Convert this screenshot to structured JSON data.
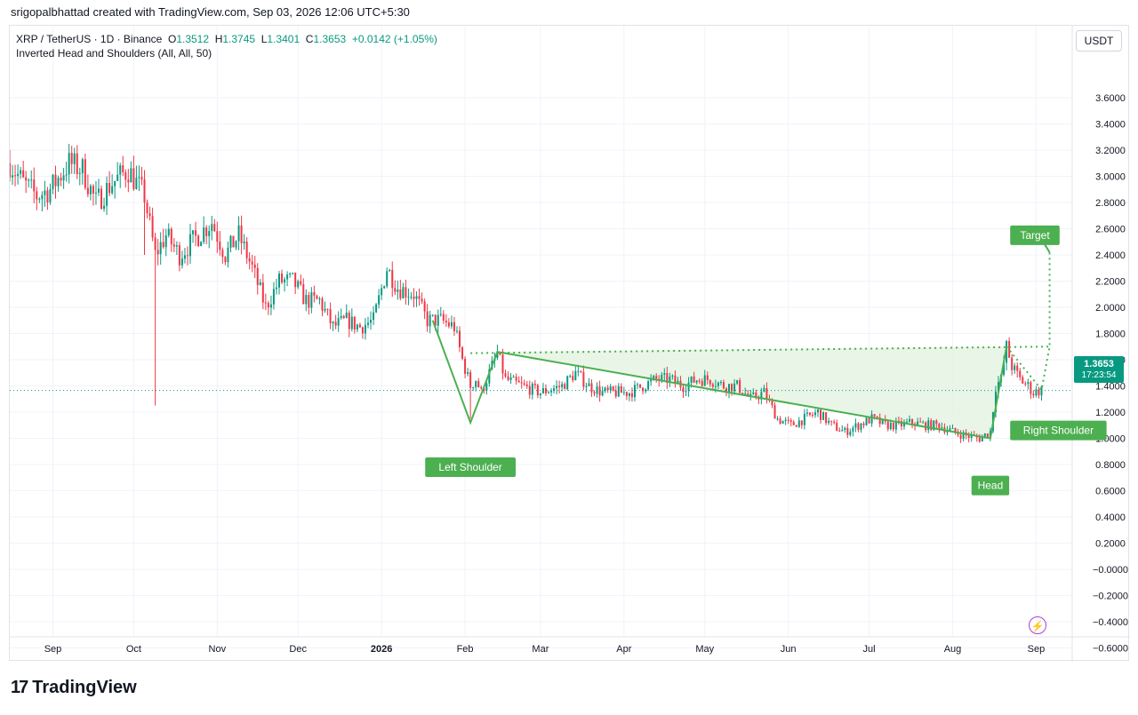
{
  "header": {
    "attribution": "srigopalbhattad created with TradingView.com, Sep 03, 2026 12:06 UTC+5:30"
  },
  "legend": {
    "symbol": "XRP / TetherUS · 1D · Binance",
    "o_label": "O",
    "o": "1.3512",
    "h_label": "H",
    "h": "1.3745",
    "l_label": "L",
    "l": "1.3401",
    "c_label": "C",
    "c": "1.3653",
    "change": "+0.0142 (+1.05%)",
    "indicator": "Inverted Head and Shoulders (All, All, 50)"
  },
  "currency": "USDT",
  "last_price": {
    "price": "1.3653",
    "countdown": "17:23:54"
  },
  "logo": {
    "mark": "17",
    "text": "TradingView"
  },
  "colors": {
    "up": "#089981",
    "down": "#f23645",
    "pattern": "#4caf50",
    "fill": "#e3f3e1",
    "price_line": "#089981"
  },
  "chart_data": {
    "type": "candlestick",
    "ylim": [
      -0.7,
      3.8
    ],
    "y_ticks": [
      "3.6000",
      "3.4000",
      "3.2000",
      "3.0000",
      "2.8000",
      "2.6000",
      "2.4000",
      "2.2000",
      "2.0000",
      "1.8000",
      "1.6000",
      "1.4000",
      "1.2000",
      "1.0000",
      "0.8000",
      "0.6000",
      "0.4000",
      "0.2000",
      "−0.0000",
      "−0.2000",
      "−0.4000",
      "−0.6000"
    ],
    "y_tick_values": [
      3.6,
      3.4,
      3.2,
      3.0,
      2.8,
      2.6,
      2.4,
      2.2,
      2.0,
      1.8,
      1.6,
      1.4,
      1.2,
      1.0,
      0.8,
      0.6,
      0.4,
      0.2,
      0,
      -0.2,
      -0.4,
      -0.6
    ],
    "x_ticks": [
      "Sep",
      "Oct",
      "Nov",
      "Dec",
      "2026",
      "Feb",
      "Mar",
      "Apr",
      "May",
      "Jun",
      "Jul",
      "Aug",
      "Sep"
    ],
    "x_tick_days": [
      16,
      46,
      77,
      107,
      138,
      169,
      197,
      228,
      258,
      289,
      319,
      350,
      381
    ],
    "bold_ticks": [
      "2026"
    ],
    "close_path": [
      [
        0,
        3.1
      ],
      [
        5,
        2.95
      ],
      [
        10,
        2.85
      ],
      [
        15,
        2.9
      ],
      [
        22,
        3.1
      ],
      [
        27,
        3.05
      ],
      [
        32,
        2.8
      ],
      [
        38,
        2.95
      ],
      [
        44,
        3.05
      ],
      [
        50,
        2.85
      ],
      [
        54,
        2.4
      ],
      [
        58,
        2.55
      ],
      [
        63,
        2.4
      ],
      [
        70,
        2.55
      ],
      [
        75,
        2.65
      ],
      [
        80,
        2.4
      ],
      [
        85,
        2.55
      ],
      [
        90,
        2.3
      ],
      [
        95,
        2.0
      ],
      [
        100,
        2.2
      ],
      [
        105,
        2.2
      ],
      [
        110,
        2.05
      ],
      [
        115,
        2.05
      ],
      [
        120,
        1.85
      ],
      [
        125,
        1.9
      ],
      [
        130,
        1.85
      ],
      [
        135,
        1.9
      ],
      [
        140,
        2.3
      ],
      [
        144,
        2.15
      ],
      [
        150,
        2.1
      ],
      [
        155,
        1.9
      ],
      [
        160,
        1.9
      ],
      [
        165,
        1.85
      ],
      [
        168,
        1.6
      ],
      [
        171,
        1.4
      ],
      [
        173,
        1.45
      ],
      [
        175,
        1.35
      ],
      [
        178,
        1.5
      ],
      [
        181,
        1.65
      ],
      [
        184,
        1.45
      ],
      [
        190,
        1.4
      ],
      [
        197,
        1.35
      ],
      [
        205,
        1.4
      ],
      [
        210,
        1.5
      ],
      [
        215,
        1.4
      ],
      [
        220,
        1.35
      ],
      [
        225,
        1.35
      ],
      [
        230,
        1.35
      ],
      [
        235,
        1.4
      ],
      [
        240,
        1.45
      ],
      [
        245,
        1.45
      ],
      [
        250,
        1.4
      ],
      [
        255,
        1.45
      ],
      [
        260,
        1.45
      ],
      [
        265,
        1.4
      ],
      [
        270,
        1.4
      ],
      [
        275,
        1.3
      ],
      [
        280,
        1.35
      ],
      [
        285,
        1.15
      ],
      [
        290,
        1.1
      ],
      [
        295,
        1.15
      ],
      [
        300,
        1.2
      ],
      [
        305,
        1.1
      ],
      [
        310,
        1.05
      ],
      [
        315,
        1.1
      ],
      [
        320,
        1.15
      ],
      [
        325,
        1.1
      ],
      [
        330,
        1.1
      ],
      [
        335,
        1.12
      ],
      [
        340,
        1.1
      ],
      [
        345,
        1.1
      ],
      [
        350,
        1.05
      ],
      [
        355,
        1.02
      ],
      [
        360,
        1.0
      ],
      [
        364,
        1.05
      ],
      [
        366,
        1.4
      ],
      [
        368,
        1.45
      ],
      [
        370,
        1.7
      ],
      [
        372,
        1.55
      ],
      [
        375,
        1.45
      ],
      [
        378,
        1.4
      ],
      [
        380,
        1.35
      ],
      [
        383,
        1.37
      ]
    ],
    "spikes": [
      [
        54,
        1.25
      ],
      [
        57,
        2.6
      ],
      [
        171,
        1.15
      ],
      [
        50,
        2.4
      ]
    ],
    "pattern": {
      "outline": [
        [
          157,
          1.9
        ],
        [
          171,
          1.12
        ],
        [
          181,
          1.66
        ],
        [
          364,
          1.0
        ],
        [
          370,
          1.7
        ]
      ],
      "neckline": [
        [
          171,
          1.65
        ],
        [
          386,
          1.7
        ]
      ],
      "fill_poly": [
        [
          181,
          1.66
        ],
        [
          370,
          1.7
        ],
        [
          364,
          1.0
        ]
      ],
      "target_path": [
        [
          370,
          1.7
        ],
        [
          383,
          1.37
        ],
        [
          386,
          1.7
        ],
        [
          386,
          2.42
        ]
      ],
      "target_arrow": [
        [
          380,
          2.62
        ],
        [
          386,
          2.42
        ]
      ]
    },
    "labels": [
      {
        "text": "Left Shoulder",
        "day": 171,
        "price": 0.78,
        "kind": "below"
      },
      {
        "text": "Head",
        "day": 364,
        "price": 0.64,
        "kind": "below"
      },
      {
        "text": "Right Shoulder",
        "day": 374,
        "price": 1.06,
        "kind": "box"
      },
      {
        "text": "Target",
        "day": 374,
        "price": 2.55,
        "kind": "box"
      }
    ],
    "last_price": 1.3653
  }
}
